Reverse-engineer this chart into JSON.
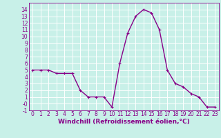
{
  "x": [
    0,
    1,
    2,
    3,
    4,
    5,
    6,
    7,
    8,
    9,
    10,
    11,
    12,
    13,
    14,
    15,
    16,
    17,
    18,
    19,
    20,
    21,
    22,
    23
  ],
  "y": [
    5,
    5,
    5,
    4.5,
    4.5,
    4.5,
    2,
    1,
    1,
    1,
    -0.5,
    6,
    10.5,
    13,
    14,
    13.5,
    11,
    5,
    3,
    2.5,
    1.5,
    1,
    -0.5,
    -0.5
  ],
  "line_color": "#880088",
  "marker": "+",
  "marker_color": "#880088",
  "bg_color": "#c8f0e8",
  "grid_color": "#ffffff",
  "xlabel": "Windchill (Refroidissement éolien,°C)",
  "xlabel_color": "#880088",
  "tick_color": "#880088",
  "ylim": [
    -1,
    15
  ],
  "xlim": [
    -0.5,
    23.5
  ],
  "yticks": [
    -1,
    0,
    1,
    2,
    3,
    4,
    5,
    6,
    7,
    8,
    9,
    10,
    11,
    12,
    13,
    14
  ],
  "xticks": [
    0,
    1,
    2,
    3,
    4,
    5,
    6,
    7,
    8,
    9,
    10,
    11,
    12,
    13,
    14,
    15,
    16,
    17,
    18,
    19,
    20,
    21,
    22,
    23
  ],
  "ytick_labels": [
    "-1",
    "-0",
    "1",
    "2",
    "3",
    "4",
    "5",
    "6",
    "7",
    "8",
    "9",
    "10",
    "11",
    "12",
    "13",
    "14"
  ],
  "xtick_labels": [
    "0",
    "1",
    "2",
    "3",
    "4",
    "5",
    "6",
    "7",
    "8",
    "9",
    "10",
    "11",
    "12",
    "13",
    "14",
    "15",
    "16",
    "17",
    "18",
    "19",
    "20",
    "21",
    "22",
    "23"
  ],
  "figsize": [
    3.2,
    2.0
  ],
  "dpi": 100,
  "linewidth": 1.0,
  "markersize": 3.5,
  "tick_fontsize": 5.5,
  "xlabel_fontsize": 6.5
}
